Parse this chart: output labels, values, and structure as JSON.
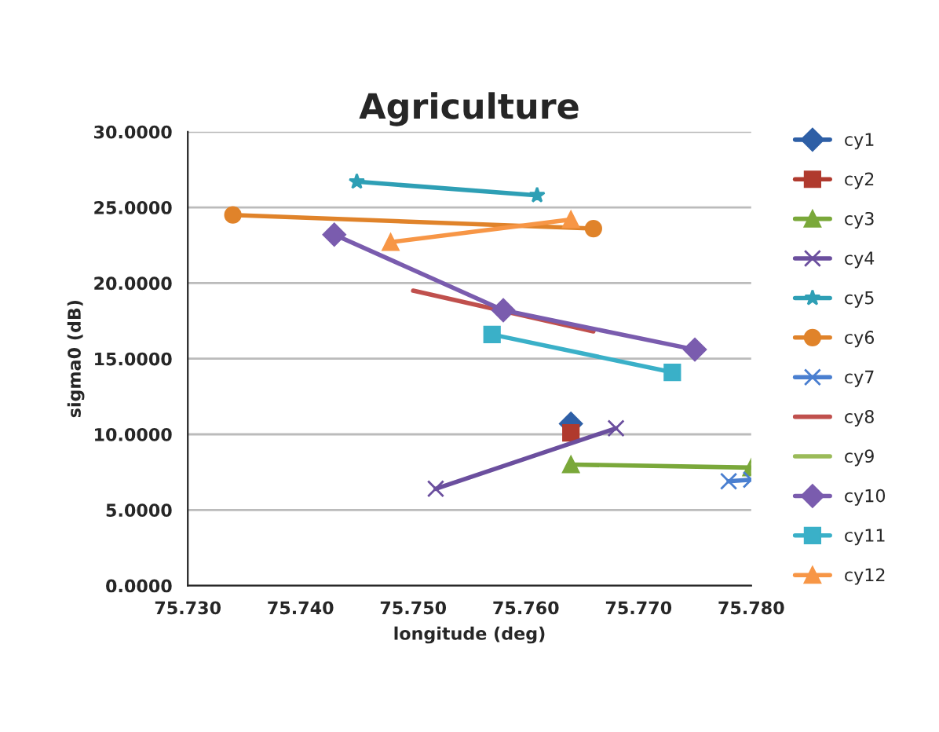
{
  "chart_data": {
    "type": "line",
    "title": "Agriculture",
    "xlabel": "longitude (deg)",
    "ylabel": "sigma0 (dB)",
    "xlim": [
      75.73,
      75.78
    ],
    "xticks": [
      {
        "value": 75.73,
        "label": "75.730"
      },
      {
        "value": 75.74,
        "label": "75.740"
      },
      {
        "value": 75.75,
        "label": "75.750"
      },
      {
        "value": 75.76,
        "label": "75.760"
      },
      {
        "value": 75.77,
        "label": "75.770"
      },
      {
        "value": 75.78,
        "label": "75.780"
      }
    ],
    "ylim": [
      0,
      30
    ],
    "yticks": [
      {
        "value": 0,
        "label": "0.0000"
      },
      {
        "value": 5,
        "label": "5.0000"
      },
      {
        "value": 10,
        "label": "10.0000"
      },
      {
        "value": 15,
        "label": "15.0000"
      },
      {
        "value": 20,
        "label": "20.0000"
      },
      {
        "value": 25,
        "label": "25.0000"
      },
      {
        "value": 30,
        "label": "30.0000"
      }
    ],
    "grid": "y",
    "legend": "right",
    "series": [
      {
        "name": "cy1",
        "color": "#2e5fa6",
        "marker": "diamond",
        "x": [
          75.764
        ],
        "values": [
          10.7
        ]
      },
      {
        "name": "cy2",
        "color": "#b03a2e",
        "marker": "square",
        "x": [
          75.764
        ],
        "values": [
          10.1
        ]
      },
      {
        "name": "cy3",
        "color": "#7aa83a",
        "marker": "triangle",
        "x": [
          75.764,
          75.78
        ],
        "values": [
          8.0,
          7.8
        ]
      },
      {
        "name": "cy4",
        "color": "#6b4f9e",
        "marker": "cross",
        "x": [
          75.752,
          75.768
        ],
        "values": [
          6.4,
          10.4
        ]
      },
      {
        "name": "cy5",
        "color": "#2e9fb5",
        "marker": "star",
        "x": [
          75.745,
          75.761
        ],
        "values": [
          26.7,
          25.8
        ]
      },
      {
        "name": "cy6",
        "color": "#e0832a",
        "marker": "circle",
        "x": [
          75.734,
          75.766
        ],
        "values": [
          24.5,
          23.6
        ]
      },
      {
        "name": "cy7",
        "color": "#4a7fd0",
        "marker": "cross",
        "x": [
          75.778,
          75.78
        ],
        "values": [
          6.9,
          7.0
        ]
      },
      {
        "name": "cy8",
        "color": "#c0504d",
        "marker": "none",
        "x": [
          75.75,
          75.766
        ],
        "values": [
          19.5,
          16.8
        ]
      },
      {
        "name": "cy9",
        "color": "#9bbb59",
        "marker": "none"
      },
      {
        "name": "cy10",
        "color": "#7a5cae",
        "marker": "diamond",
        "x": [
          75.743,
          75.758,
          75.775
        ],
        "values": [
          23.2,
          18.2,
          15.6
        ]
      },
      {
        "name": "cy11",
        "color": "#3ab0c8",
        "marker": "square",
        "x": [
          75.757,
          75.773
        ],
        "values": [
          16.6,
          14.1
        ]
      },
      {
        "name": "cy12",
        "color": "#f79646",
        "marker": "triangle",
        "x": [
          75.748,
          75.764
        ],
        "values": [
          22.7,
          24.2
        ]
      }
    ]
  }
}
